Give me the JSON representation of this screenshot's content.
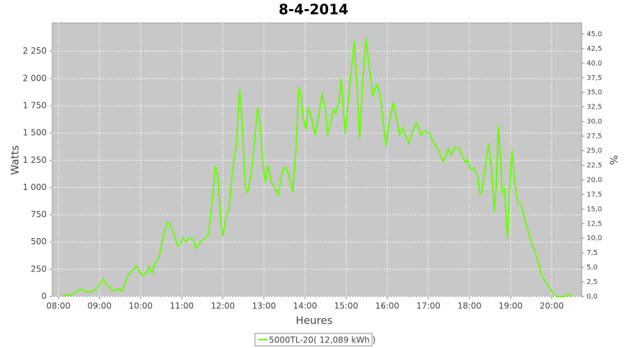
{
  "chart_data": {
    "type": "line",
    "title": "8-4-2014",
    "x_label": "Heures",
    "y_label": "Watts",
    "y2_label": "%",
    "grid": true,
    "legend": "bottom",
    "xlim": [
      7.85,
      20.73
    ],
    "xticks": [
      {
        "value": 8,
        "label": "08:00"
      },
      {
        "value": 9,
        "label": "09:00"
      },
      {
        "value": 10,
        "label": "10:00"
      },
      {
        "value": 11,
        "label": "11:00"
      },
      {
        "value": 12,
        "label": "12:00"
      },
      {
        "value": 13,
        "label": "13:00"
      },
      {
        "value": 14,
        "label": "14:00"
      },
      {
        "value": 15,
        "label": "15:00"
      },
      {
        "value": 16,
        "label": "16:00"
      },
      {
        "value": 17,
        "label": "17:00"
      },
      {
        "value": 18,
        "label": "18:00"
      },
      {
        "value": 19,
        "label": "19:00"
      },
      {
        "value": 20,
        "label": "20:00"
      }
    ],
    "ylim": [
      0,
      2510
    ],
    "yticks": [
      0,
      250,
      500,
      750,
      {
        "value": 1000,
        "label": "1 000"
      },
      {
        "value": 1250,
        "label": "1 250"
      },
      {
        "value": 1500,
        "label": "1 500"
      },
      {
        "value": 1750,
        "label": "1 750"
      },
      {
        "value": 2000,
        "label": "2 000"
      },
      {
        "value": 2250,
        "label": "2 250"
      }
    ],
    "y2lim": [
      0,
      46.9
    ],
    "y2ticks": [
      {
        "value": 0,
        "label": "0,0"
      },
      {
        "value": 2.5,
        "label": "2,5"
      },
      {
        "value": 5,
        "label": "5,0"
      },
      {
        "value": 7.5,
        "label": "7,5"
      },
      {
        "value": 10,
        "label": "10,0"
      },
      {
        "value": 12.5,
        "label": "12,5"
      },
      {
        "value": 15,
        "label": "15,0"
      },
      {
        "value": 17.5,
        "label": "17,5"
      },
      {
        "value": 20,
        "label": "20,0"
      },
      {
        "value": 22.5,
        "label": "22,5"
      },
      {
        "value": 25,
        "label": "25,0"
      },
      {
        "value": 27.5,
        "label": "27,5"
      },
      {
        "value": 30,
        "label": "30,0"
      },
      {
        "value": 32.5,
        "label": "32,5"
      },
      {
        "value": 35,
        "label": "35,0"
      },
      {
        "value": 37.5,
        "label": "37,5"
      },
      {
        "value": 40,
        "label": "40,0"
      },
      {
        "value": 42.5,
        "label": "42,5"
      },
      {
        "value": 45,
        "label": "45,0"
      }
    ],
    "series": [
      {
        "name": "5000TL-20( 12,089 kWh )",
        "color": "#66ff00",
        "x": [
          8.1,
          8.2,
          8.3,
          8.45,
          8.55,
          8.65,
          8.8,
          8.95,
          9.08,
          9.2,
          9.35,
          9.45,
          9.55,
          9.7,
          9.83,
          9.9,
          9.97,
          10.05,
          10.15,
          10.2,
          10.28,
          10.35,
          10.45,
          10.55,
          10.65,
          10.72,
          10.8,
          10.9,
          10.98,
          11.03,
          11.1,
          11.2,
          11.28,
          11.35,
          11.45,
          11.55,
          11.65,
          11.72,
          11.82,
          11.88,
          11.95,
          12.0,
          12.08,
          12.15,
          12.25,
          12.33,
          12.41,
          12.47,
          12.55,
          12.6,
          12.7,
          12.8,
          12.85,
          12.9,
          12.97,
          13.03,
          13.1,
          13.18,
          13.28,
          13.35,
          13.45,
          13.52,
          13.6,
          13.7,
          13.78,
          13.85,
          13.9,
          13.95,
          14.02,
          14.08,
          14.15,
          14.25,
          14.35,
          14.42,
          14.5,
          14.55,
          14.6,
          14.7,
          14.75,
          14.82,
          14.88,
          14.93,
          14.98,
          15.05,
          15.12,
          15.2,
          15.27,
          15.33,
          15.4,
          15.48,
          15.55,
          15.65,
          15.75,
          15.83,
          15.9,
          15.97,
          16.05,
          16.15,
          16.22,
          16.3,
          16.38,
          16.45,
          16.52,
          16.6,
          16.72,
          16.82,
          16.9,
          17.02,
          17.15,
          17.25,
          17.35,
          17.4,
          17.48,
          17.55,
          17.65,
          17.75,
          17.83,
          17.9,
          17.95,
          18.02,
          18.1,
          18.2,
          18.25,
          18.3,
          18.4,
          18.47,
          18.55,
          18.6,
          18.65,
          18.7,
          18.75,
          18.8,
          18.85,
          18.92,
          18.98,
          19.03,
          19.1,
          19.18,
          19.25,
          19.35,
          19.45,
          19.55,
          19.65,
          19.75,
          19.85,
          19.95,
          20.05,
          20.12,
          20.2,
          20.32,
          20.4,
          20.5
        ],
        "values": [
          0,
          20,
          10,
          50,
          70,
          45,
          40,
          80,
          160,
          100,
          50,
          70,
          50,
          200,
          250,
          280,
          230,
          190,
          220,
          280,
          210,
          300,
          360,
          550,
          680,
          660,
          580,
          460,
          490,
          540,
          500,
          540,
          520,
          440,
          500,
          530,
          570,
          800,
          1200,
          1100,
          700,
          560,
          730,
          800,
          1200,
          1400,
          1900,
          1600,
          1000,
          950,
          1150,
          1550,
          1730,
          1600,
          1250,
          1050,
          1200,
          1050,
          990,
          930,
          1150,
          1190,
          1120,
          960,
          1350,
          1920,
          1850,
          1650,
          1530,
          1730,
          1650,
          1480,
          1700,
          1860,
          1700,
          1480,
          1560,
          1720,
          1680,
          1780,
          2000,
          1700,
          1500,
          1800,
          2050,
          2340,
          1900,
          1450,
          1950,
          2370,
          2150,
          1840,
          1950,
          1850,
          1600,
          1380,
          1600,
          1780,
          1650,
          1480,
          1550,
          1470,
          1400,
          1500,
          1600,
          1480,
          1520,
          1500,
          1400,
          1340,
          1240,
          1260,
          1360,
          1300,
          1370,
          1360,
          1280,
          1230,
          1260,
          1170,
          1180,
          1100,
          940,
          960,
          1230,
          1400,
          1100,
          780,
          1000,
          1560,
          1300,
          950,
          990,
          540,
          1000,
          1340,
          1050,
          850,
          850,
          700,
          570,
          450,
          350,
          200,
          130,
          80,
          20,
          0,
          0,
          0,
          25,
          0
        ]
      }
    ]
  }
}
